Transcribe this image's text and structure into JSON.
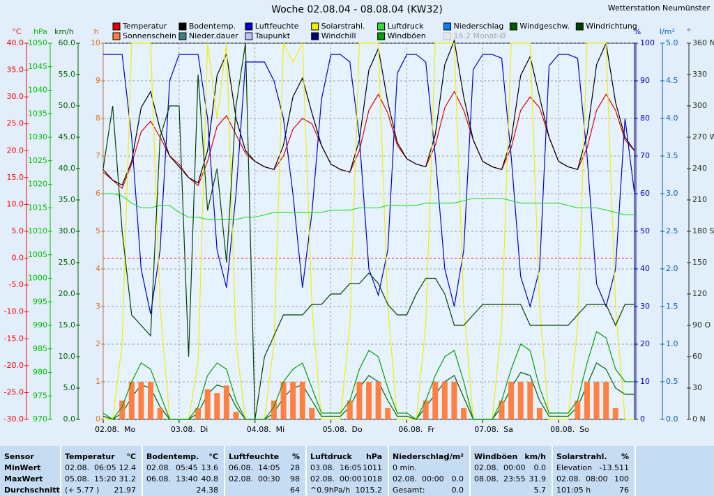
{
  "header": {
    "title": "Woche 02.08.04 - 08.08.04 (KW32)",
    "station": "Wetterstation Neumünster"
  },
  "chart_data": {
    "type": "line",
    "xlim": [
      0,
      168
    ],
    "xticks": [
      {
        "value": 0,
        "label": "02.08.  Mo"
      },
      {
        "value": 24,
        "label": "03.08.  Di"
      },
      {
        "value": 48,
        "label": "04.08.  Mi"
      },
      {
        "value": 72,
        "label": "05.08.  Do"
      },
      {
        "value": 96,
        "label": "06.08.  Fr"
      },
      {
        "value": 120,
        "label": "07.08.  Sa"
      },
      {
        "value": 144,
        "label": "08.08.  So"
      }
    ],
    "x": [
      0,
      3,
      6,
      9,
      12,
      15,
      18,
      21,
      24,
      27,
      30,
      33,
      36,
      39,
      42,
      45,
      48,
      51,
      54,
      57,
      60,
      63,
      66,
      69,
      72,
      75,
      78,
      81,
      84,
      87,
      90,
      93,
      96,
      99,
      102,
      105,
      108,
      111,
      114,
      117,
      120,
      123,
      126,
      129,
      132,
      135,
      138,
      141,
      144,
      147,
      150,
      153,
      156,
      159,
      162,
      165,
      168
    ],
    "axes": [
      {
        "label": "°C",
        "color": "#ff0000",
        "lim": [
          -30,
          40
        ],
        "ticks": [
          {
            "value": 40,
            "label": "40.0"
          },
          {
            "value": 35,
            "label": "35.0"
          },
          {
            "value": 30,
            "label": "30.0"
          },
          {
            "value": 25,
            "label": "25.0"
          },
          {
            "value": 20,
            "label": "20.0"
          },
          {
            "value": 15,
            "label": "15.0"
          },
          {
            "value": 10,
            "label": "10.0"
          },
          {
            "value": 5,
            "label": "5.0"
          },
          {
            "value": 0,
            "label": "0.0"
          },
          {
            "value": -5,
            "label": "-5.0"
          },
          {
            "value": -10,
            "label": "-10.0"
          },
          {
            "value": -15,
            "label": "-15.0"
          },
          {
            "value": -20,
            "label": "-20.0"
          },
          {
            "value": -25,
            "label": "-25.0"
          },
          {
            "value": -30,
            "label": "-30.0"
          }
        ]
      },
      {
        "label": "hPa",
        "color": "#00c000",
        "lim": [
          970,
          1050
        ],
        "ticks": [
          1050,
          1045,
          1040,
          1035,
          1030,
          1025,
          1020,
          1015,
          1010,
          1005,
          1000,
          995,
          990,
          985,
          980,
          975,
          970
        ]
      },
      {
        "label": "km/h",
        "color": "#006000",
        "lim": [
          0,
          60
        ],
        "ticks": [
          {
            "value": 60,
            "label": "60.0"
          },
          {
            "value": 55,
            "label": "55.0"
          },
          {
            "value": 50,
            "label": "50.0"
          },
          {
            "value": 45,
            "label": "45.0"
          },
          {
            "value": 40,
            "label": "40.0"
          },
          {
            "value": 35,
            "label": "35.0"
          },
          {
            "value": 30,
            "label": "30.0"
          },
          {
            "value": 25,
            "label": "25.0"
          },
          {
            "value": 20,
            "label": "20.0"
          },
          {
            "value": 15,
            "label": "15.0"
          },
          {
            "value": 10,
            "label": "10.0"
          },
          {
            "value": 5,
            "label": "5.0"
          },
          {
            "value": 0,
            "label": "0.0"
          }
        ]
      },
      {
        "label": "h",
        "color": "#e07020",
        "lim": [
          0,
          10
        ],
        "grid": true,
        "ticks": [
          10,
          9,
          8,
          7,
          6,
          5,
          4,
          3,
          2,
          1,
          0
        ]
      },
      {
        "label": "%",
        "color": "#0000c0",
        "lim": [
          0,
          100
        ],
        "ticks": [
          100,
          90,
          80,
          70,
          60,
          50,
          40,
          30,
          20,
          10,
          0
        ]
      },
      {
        "label": "l/m²",
        "color": "#0060c0",
        "lim": [
          0,
          5
        ],
        "ticks": [
          {
            "value": 5,
            "label": "5.0"
          },
          {
            "value": 4.5,
            "label": "4.5"
          },
          {
            "value": 4,
            "label": "4.0"
          },
          {
            "value": 3.5,
            "label": "3.5"
          },
          {
            "value": 3,
            "label": "3.0"
          },
          {
            "value": 2.5,
            "label": "2.5"
          },
          {
            "value": 2,
            "label": "2.0"
          },
          {
            "value": 1.5,
            "label": "1.5"
          },
          {
            "value": 1,
            "label": "1.0"
          },
          {
            "value": 0.5,
            "label": "0.5"
          },
          {
            "value": 0,
            "label": "0.0"
          }
        ]
      },
      {
        "label": "°",
        "color": "#203020",
        "lim": [
          0,
          360
        ],
        "ticks": [
          {
            "value": 360,
            "label": "360 N"
          },
          330,
          300,
          {
            "value": 270,
            "label": "270 W"
          },
          240,
          210,
          {
            "value": 180,
            "label": "180 S"
          },
          150,
          120,
          {
            "value": 90,
            "label": "90 O"
          },
          60,
          30,
          {
            "value": 0,
            "label": "0 N"
          }
        ]
      }
    ],
    "series": [
      {
        "name": "Temperatur",
        "color": "#e00000",
        "axis": "°C",
        "values": [
          16.0,
          14.5,
          13.0,
          17.5,
          23.5,
          25.5,
          22.5,
          19.0,
          17.5,
          15.0,
          13.5,
          18.0,
          24.5,
          26.5,
          23.0,
          19.5,
          18.0,
          17.0,
          16.5,
          19.0,
          24.0,
          26.0,
          25.0,
          21.0,
          17.5,
          16.5,
          16.0,
          20.0,
          27.5,
          30.5,
          27.0,
          21.0,
          18.5,
          17.5,
          17.0,
          21.0,
          28.0,
          31.0,
          27.5,
          22.0,
          18.0,
          17.0,
          16.5,
          20.5,
          27.5,
          30.0,
          28.0,
          22.5,
          18.0,
          17.0,
          16.5,
          20.5,
          27.5,
          30.5,
          27.5,
          22.0,
          20.0
        ]
      },
      {
        "name": "Bodentemp.",
        "color": "#000000",
        "axis": "°C",
        "values": [
          16.5,
          14.5,
          13.6,
          18,
          28,
          31,
          24,
          19,
          17,
          15,
          14,
          20,
          34,
          38,
          26,
          20,
          18,
          17,
          16.5,
          21,
          30,
          33.5,
          27,
          21,
          17.5,
          16.5,
          16,
          22,
          35,
          39,
          29,
          21.5,
          18.5,
          17.5,
          17,
          23,
          36,
          40.5,
          30,
          22,
          18,
          17,
          16.5,
          22,
          34,
          37.5,
          30,
          22.5,
          18,
          17,
          16.5,
          23,
          36,
          40,
          29,
          22.5,
          20
        ]
      },
      {
        "name": "Luftfeuchte",
        "color": "#0000c8",
        "axis": "%",
        "values": [
          97,
          97,
          97,
          75,
          40,
          28,
          45,
          90,
          97,
          97,
          97,
          80,
          45,
          35,
          60,
          95,
          95,
          95,
          90,
          80,
          60,
          35,
          55,
          85,
          97,
          97,
          95,
          75,
          40,
          33,
          45,
          92,
          97,
          97,
          95,
          70,
          40,
          30,
          45,
          93,
          97,
          97,
          96,
          70,
          38,
          30,
          40,
          94,
          97,
          97,
          96,
          70,
          36,
          30,
          40,
          80,
          60
        ]
      },
      {
        "name": "Solarstrahl.",
        "color": "#f0f000",
        "axis": "%",
        "values": [
          0,
          0,
          20,
          100,
          100,
          100,
          30,
          0,
          0,
          0,
          15,
          100,
          80,
          100,
          20,
          0,
          0,
          0,
          20,
          100,
          95,
          100,
          30,
          0,
          0,
          0,
          25,
          100,
          100,
          100,
          30,
          0,
          0,
          0,
          25,
          100,
          100,
          100,
          30,
          0,
          0,
          0,
          25,
          100,
          100,
          100,
          30,
          0,
          0,
          0,
          25,
          100,
          100,
          100,
          30,
          0,
          0
        ]
      },
      {
        "name": "Luftdruck",
        "color": "#30e030",
        "axis": "hPa",
        "values": [
          1018,
          1018,
          1017.5,
          1016,
          1015,
          1015,
          1015.5,
          1015.5,
          1014,
          1013,
          1013,
          1012.5,
          1012.5,
          1012.5,
          1012.5,
          1013,
          1013,
          1013.5,
          1014,
          1014,
          1014,
          1014,
          1014,
          1014,
          1014.5,
          1014.5,
          1014.5,
          1015,
          1015,
          1015,
          1015.5,
          1015.5,
          1015.5,
          1015.5,
          1016,
          1016,
          1016,
          1016,
          1016.5,
          1017,
          1017,
          1017,
          1017,
          1016.5,
          1016,
          1016,
          1016,
          1016,
          1016,
          1015.5,
          1015,
          1015,
          1015,
          1014.5,
          1014,
          1013.5,
          1013.5
        ]
      },
      {
        "name": "Niederschlag",
        "color": "#0080ff"
      },
      {
        "name": "Windgeschw.",
        "color": "#006000",
        "axis": "km/h",
        "values": [
          0.5,
          0,
          1,
          3.5,
          5.5,
          5,
          2,
          0,
          0,
          0,
          1,
          4,
          5.5,
          5,
          2,
          0,
          0,
          0,
          1,
          3.5,
          5,
          5.5,
          3,
          0.5,
          0.5,
          0.5,
          2,
          5,
          7,
          6,
          3,
          0.5,
          0.5,
          0,
          2,
          4,
          6,
          7,
          3.5,
          0,
          0,
          0,
          2,
          5,
          7.5,
          7,
          3,
          0.5,
          0.5,
          0.5,
          2,
          5.5,
          9,
          8,
          5,
          4,
          4
        ]
      },
      {
        "name": "Windrichtung",
        "color": "#004000",
        "axis": "°",
        "values": [
          240,
          300,
          180,
          100,
          90,
          80,
          270,
          300,
          300,
          60,
          330,
          200,
          240,
          150,
          300,
          360,
          0,
          60,
          80,
          100,
          100,
          100,
          110,
          110,
          120,
          120,
          130,
          130,
          140,
          130,
          110,
          100,
          100,
          120,
          135,
          135,
          120,
          90,
          90,
          100,
          110,
          110,
          110,
          110,
          110,
          90,
          90,
          90,
          90,
          90,
          100,
          110,
          110,
          110,
          90,
          110,
          110
        ]
      },
      {
        "name": "Sonnenschein",
        "color": "#ff8040",
        "axis": "h",
        "kind": "bar",
        "values": [
          0,
          0,
          0.5,
          1,
          1,
          1,
          0.3,
          0,
          0,
          0,
          0.3,
          0.8,
          0.7,
          0.9,
          0.2,
          0,
          0,
          0,
          0.5,
          1,
          1,
          1,
          0.3,
          0,
          0,
          0,
          0.5,
          1,
          1,
          1,
          0.3,
          0,
          0,
          0,
          0.5,
          1,
          1,
          1,
          0.3,
          0,
          0,
          0,
          0.5,
          1,
          1,
          1,
          0.3,
          0,
          0,
          0,
          0.5,
          1,
          1,
          1,
          0.3,
          0,
          0
        ]
      },
      {
        "name": "Nieder.dauer",
        "color": "#408080"
      },
      {
        "name": "Taupunkt",
        "color": "#c0c0ff"
      },
      {
        "name": "Windchill",
        "color": "#000080"
      },
      {
        "name": "Windböen",
        "color": "#00a000",
        "axis": "km/h",
        "values": [
          1,
          0,
          2,
          6,
          9,
          8,
          4,
          0,
          0,
          0,
          2,
          7,
          9,
          8,
          3,
          0,
          0,
          0,
          2,
          6,
          8,
          9,
          5,
          1,
          1,
          1,
          3,
          8,
          11,
          10,
          5,
          1,
          1,
          0,
          3,
          7,
          10,
          11,
          6,
          0,
          0,
          0,
          3,
          8,
          12,
          11,
          5,
          1,
          1,
          1,
          3,
          9,
          14,
          13,
          8,
          6,
          6
        ]
      },
      {
        "name": "16.2 Monat-Ø",
        "color": "#e8e8e8",
        "axis": "°C",
        "value": 16.2,
        "disabled": true
      }
    ]
  },
  "table": {
    "sensor_header": "Sensor",
    "row_labels": [
      "MinWert",
      "MaxWert",
      "Durchschnitt"
    ],
    "columns": [
      {
        "name": "Temperatur",
        "unit": "°C",
        "rows": [
          {
            "left": "02.08.  06:05",
            "right": "12.4"
          },
          {
            "left": "05.08.  15:20",
            "right": "31.2"
          },
          {
            "left": "(+ 5.77 )",
            "right": "21.97"
          }
        ]
      },
      {
        "name": "Bodentemp.",
        "unit": "°C",
        "rows": [
          {
            "left": "02.08.  05:45",
            "right": "13.6"
          },
          {
            "left": "06.08.  13:40",
            "right": "40.8"
          },
          {
            "right": "24.38"
          }
        ]
      },
      {
        "name": "Luftfeuchte",
        "unit": "%",
        "rows": [
          {
            "left": "06.08.  14:05",
            "right": "28"
          },
          {
            "left": "02.08.  00:30",
            "right": "98"
          },
          {
            "right": "64"
          }
        ]
      },
      {
        "name": "Luftdruck",
        "unit": "hPa",
        "rows": [
          {
            "left": "03.08.  16:05",
            "right": "1011"
          },
          {
            "left": "02.08.  00:00",
            "right": "1018"
          },
          {
            "left": "^0.9hPa/h",
            "right": "1015.2"
          }
        ]
      },
      {
        "name": "Niederschlag",
        "unit": "l/m²",
        "rows": [
          {
            "left": "0 min."
          },
          {
            "left": "02.08.  00:00",
            "right": "0.0"
          },
          {
            "left": "Gesamt:",
            "right": "0.0"
          }
        ]
      },
      {
        "name": "Windböen",
        "unit": "km/h",
        "rows": [
          {
            "left": "02.08.  00:00",
            "right": "0.0"
          },
          {
            "left": "08.08.  23:55",
            "right": "31.9"
          },
          {
            "right": "5.7"
          }
        ]
      },
      {
        "name": "Solarstrahl.",
        "unit": "%",
        "rows": [
          {
            "left": "Elevation",
            "right": "-13.511"
          },
          {
            "left": "02.08.  08:00",
            "right": "100"
          },
          {
            "left": "101:05 h",
            "right": "76"
          }
        ]
      }
    ]
  }
}
